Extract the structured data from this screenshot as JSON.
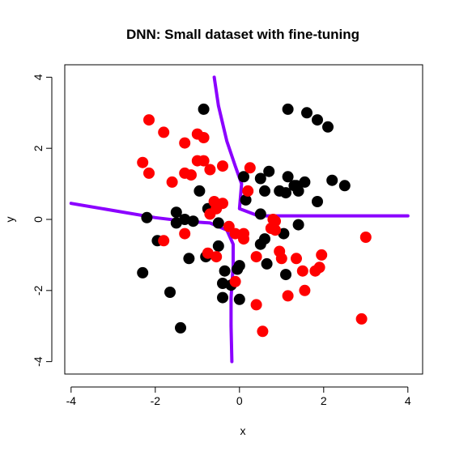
{
  "chart_data": {
    "type": "scatter",
    "title": "DNN: Small dataset with fine-tuning",
    "xlabel": "x",
    "ylabel": "y",
    "xlim": [
      -4.15,
      4.35
    ],
    "ylim": [
      -4.35,
      4.35
    ],
    "xticks": [
      -4,
      -2,
      0,
      2,
      4
    ],
    "yticks": [
      -4,
      -2,
      0,
      2,
      4
    ],
    "grid": false,
    "legend": "none",
    "series": [
      {
        "color": "#000000",
        "points": [
          [
            -0.85,
            3.1
          ],
          [
            1.15,
            3.1
          ],
          [
            1.6,
            3.0
          ],
          [
            1.85,
            2.8
          ],
          [
            2.1,
            2.6
          ],
          [
            0.5,
            1.15
          ],
          [
            0.7,
            1.35
          ],
          [
            1.15,
            1.2
          ],
          [
            1.3,
            0.95
          ],
          [
            1.55,
            1.05
          ],
          [
            2.2,
            1.1
          ],
          [
            2.5,
            0.95
          ],
          [
            0.95,
            0.8
          ],
          [
            1.1,
            0.75
          ],
          [
            1.4,
            0.8
          ],
          [
            1.35,
            0.95
          ],
          [
            1.85,
            0.5
          ],
          [
            0.6,
            0.8
          ],
          [
            0.1,
            1.2
          ],
          [
            -0.95,
            0.8
          ],
          [
            -0.75,
            0.3
          ],
          [
            0.15,
            0.55
          ],
          [
            0.5,
            0.15
          ],
          [
            -2.2,
            0.05
          ],
          [
            -1.5,
            0.2
          ],
          [
            -1.5,
            -0.1
          ],
          [
            -1.3,
            0.0
          ],
          [
            -1.1,
            -0.05
          ],
          [
            -0.5,
            -0.1
          ],
          [
            1.4,
            -0.15
          ],
          [
            -1.95,
            -0.6
          ],
          [
            -0.5,
            -0.75
          ],
          [
            0.6,
            -0.55
          ],
          [
            0.5,
            -0.7
          ],
          [
            1.05,
            -0.4
          ],
          [
            -1.2,
            -1.1
          ],
          [
            -0.8,
            -1.05
          ],
          [
            -0.35,
            -1.45
          ],
          [
            -0.05,
            -1.4
          ],
          [
            0.0,
            -1.3
          ],
          [
            0.65,
            -1.25
          ],
          [
            1.1,
            -1.55
          ],
          [
            -2.3,
            -1.5
          ],
          [
            -0.4,
            -1.8
          ],
          [
            -0.2,
            -1.85
          ],
          [
            -1.65,
            -2.05
          ],
          [
            -0.4,
            -2.2
          ],
          [
            0.0,
            -2.25
          ],
          [
            -1.4,
            -3.05
          ]
        ]
      },
      {
        "color": "#ff0000",
        "points": [
          [
            -2.15,
            2.8
          ],
          [
            -1.8,
            2.45
          ],
          [
            -1.0,
            2.4
          ],
          [
            -0.85,
            2.3
          ],
          [
            -1.3,
            2.15
          ],
          [
            -2.3,
            1.6
          ],
          [
            -1.0,
            1.65
          ],
          [
            -0.85,
            1.65
          ],
          [
            -0.4,
            1.5
          ],
          [
            0.25,
            1.45
          ],
          [
            -2.15,
            1.3
          ],
          [
            -1.3,
            1.3
          ],
          [
            -1.15,
            1.25
          ],
          [
            -0.7,
            1.4
          ],
          [
            -1.6,
            1.05
          ],
          [
            0.2,
            0.8
          ],
          [
            -0.6,
            0.5
          ],
          [
            -0.4,
            0.45
          ],
          [
            -0.7,
            0.15
          ],
          [
            -0.55,
            0.3
          ],
          [
            0.8,
            0.0
          ],
          [
            0.85,
            -0.05
          ],
          [
            -0.25,
            -0.2
          ],
          [
            -0.1,
            -0.4
          ],
          [
            0.1,
            -0.4
          ],
          [
            0.1,
            -0.55
          ],
          [
            -1.3,
            -0.4
          ],
          [
            -1.8,
            -0.6
          ],
          [
            0.75,
            -0.25
          ],
          [
            0.85,
            -0.3
          ],
          [
            3.0,
            -0.5
          ],
          [
            -0.75,
            -0.95
          ],
          [
            -0.55,
            -1.05
          ],
          [
            0.4,
            -1.05
          ],
          [
            0.95,
            -0.9
          ],
          [
            1.0,
            -1.1
          ],
          [
            1.35,
            -1.1
          ],
          [
            1.95,
            -1.0
          ],
          [
            1.5,
            -1.45
          ],
          [
            1.8,
            -1.45
          ],
          [
            1.9,
            -1.35
          ],
          [
            -0.1,
            -1.75
          ],
          [
            1.55,
            -2.0
          ],
          [
            1.15,
            -2.15
          ],
          [
            0.4,
            -2.4
          ],
          [
            2.9,
            -2.8
          ],
          [
            0.55,
            -3.15
          ]
        ]
      },
      {
        "color": "#8b00ff",
        "line": true,
        "points": [
          [
            -0.6,
            4.0
          ],
          [
            -0.5,
            3.2
          ],
          [
            -0.3,
            2.2
          ],
          [
            -0.1,
            1.5
          ],
          [
            0.05,
            1.0
          ],
          [
            0.0,
            0.3
          ],
          [
            0.45,
            0.1
          ],
          [
            0.9,
            0.1
          ],
          [
            2.5,
            0.1
          ],
          [
            4.0,
            0.1
          ]
        ]
      },
      {
        "color": "#8b00ff",
        "line": true,
        "points": [
          [
            -4.0,
            0.45
          ],
          [
            -3.0,
            0.25
          ],
          [
            -2.0,
            0.05
          ],
          [
            -1.3,
            -0.05
          ],
          [
            -0.7,
            -0.1
          ],
          [
            -0.3,
            -0.3
          ],
          [
            -0.15,
            -0.7
          ],
          [
            -0.15,
            -1.3
          ],
          [
            -0.2,
            -2.2
          ],
          [
            -0.2,
            -3.0
          ],
          [
            -0.18,
            -4.0
          ]
        ]
      }
    ]
  }
}
